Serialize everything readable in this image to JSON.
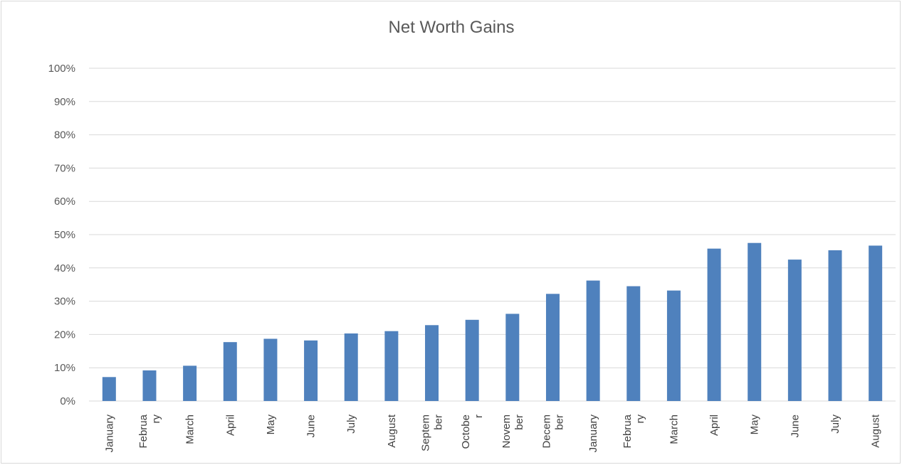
{
  "chart_data": {
    "type": "bar",
    "title": "Net Worth Gains",
    "xlabel": "",
    "ylabel": "",
    "ylim": [
      0,
      1
    ],
    "yticks": [
      {
        "value": 0,
        "label": "0%"
      },
      {
        "value": 0.1,
        "label": "10%"
      },
      {
        "value": 0.2,
        "label": "20%"
      },
      {
        "value": 0.3,
        "label": "30%"
      },
      {
        "value": 0.4,
        "label": "40%"
      },
      {
        "value": 0.5,
        "label": "50%"
      },
      {
        "value": 0.6,
        "label": "60%"
      },
      {
        "value": 0.7,
        "label": "70%"
      },
      {
        "value": 0.8,
        "label": "80%"
      },
      {
        "value": 0.9,
        "label": "90%"
      },
      {
        "value": 1.0,
        "label": "100%"
      }
    ],
    "grid": true,
    "bar_color": "#4f81bd",
    "grid_color": "#d9d9d9",
    "categories": [
      [
        "January"
      ],
      [
        "Februa",
        "ry"
      ],
      [
        "March"
      ],
      [
        "April"
      ],
      [
        "May"
      ],
      [
        "June"
      ],
      [
        "July"
      ],
      [
        "August"
      ],
      [
        "Septem",
        "ber"
      ],
      [
        "Octobe",
        "r"
      ],
      [
        "Novem",
        "ber"
      ],
      [
        "Decem",
        "ber"
      ],
      [
        "January"
      ],
      [
        "Februa",
        "ry"
      ],
      [
        "March"
      ],
      [
        "April"
      ],
      [
        "May"
      ],
      [
        "June"
      ],
      [
        "July"
      ],
      [
        "August"
      ]
    ],
    "values": [
      0.072,
      0.092,
      0.106,
      0.177,
      0.187,
      0.182,
      0.203,
      0.21,
      0.228,
      0.244,
      0.262,
      0.322,
      0.362,
      0.345,
      0.332,
      0.458,
      0.475,
      0.425,
      0.453,
      0.467
    ]
  }
}
